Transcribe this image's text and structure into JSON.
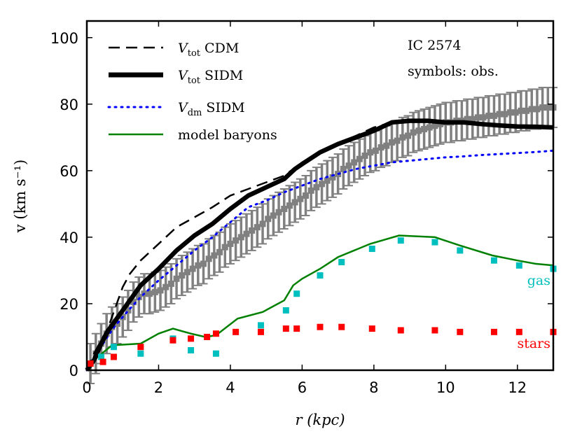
{
  "chart_data": {
    "type": "line",
    "title": "IC 2574",
    "subtitle": "symbols: obs.",
    "xlabel": "r (kpc)",
    "ylabel": "v (km s⁻¹)",
    "xlim": [
      0,
      13
    ],
    "ylim": [
      0,
      105
    ],
    "xticks": [
      0,
      2,
      4,
      6,
      8,
      10,
      12
    ],
    "yticks": [
      0,
      20,
      40,
      60,
      80,
      100
    ],
    "legend_position": "top-left",
    "legend": [
      {
        "key": "vtot_cdm",
        "main": "V",
        "sub": "tot",
        "rest": " CDM",
        "style": "dashed",
        "color": "#000000"
      },
      {
        "key": "vtot_sidm",
        "main": "V",
        "sub": "tot",
        "rest": " SIDM",
        "style": "thick",
        "color": "#000000"
      },
      {
        "key": "vdm_sidm",
        "main": "V",
        "sub": "dm",
        "rest": " SIDM",
        "style": "dotted",
        "color": "#0000ff"
      },
      {
        "key": "baryons",
        "main": "model baryons",
        "sub": "",
        "rest": "",
        "style": "solid",
        "color": "#008000"
      }
    ],
    "annotations": {
      "gas": "gas",
      "stars": "stars"
    },
    "colors": {
      "obs": "#808080",
      "gas": "#00bfbf",
      "stars": "#ff0000",
      "dm": "#0000ff",
      "baryons": "#008000",
      "total": "#000000"
    },
    "lines": {
      "vtot_cdm": {
        "x": [
          0,
          0.2,
          0.4,
          0.6,
          0.8,
          1.0,
          1.2,
          1.5,
          2.0,
          2.5,
          3.0,
          3.5,
          4.0,
          4.5,
          5.0,
          5.5,
          6.0,
          6.5,
          7.0,
          7.5,
          8.0,
          8.5,
          9.0,
          9.5,
          10.0,
          10.5,
          11.0,
          11.5,
          12.0,
          12.5,
          13.0
        ],
        "y": [
          0,
          5,
          9,
          13,
          19,
          25,
          29,
          33,
          38,
          43,
          46,
          49,
          52.5,
          54.5,
          56.5,
          58.5,
          62.5,
          65.5,
          68,
          70.5,
          73,
          74.5,
          75,
          75,
          74.8,
          74.5,
          74,
          73.6,
          73.3,
          73.2,
          73
        ]
      },
      "vtot_sidm": {
        "x": [
          0,
          0.2,
          0.4,
          0.6,
          0.8,
          1.0,
          1.2,
          1.5,
          2.0,
          2.5,
          3.0,
          3.5,
          4.0,
          4.5,
          5.0,
          5.5,
          5.8,
          6.0,
          6.5,
          7.0,
          7.5,
          8.0,
          8.5,
          9.0,
          9.5,
          10.0,
          10.5,
          11.0,
          11.5,
          12.0,
          12.5,
          13.0
        ],
        "y": [
          0,
          3,
          8,
          12,
          15,
          18,
          21,
          25.5,
          30.5,
          36,
          40.5,
          44,
          48.5,
          52.5,
          55,
          57.5,
          60.5,
          62,
          65.5,
          68,
          70,
          72,
          74.5,
          75,
          75,
          74.5,
          74.5,
          74,
          73.6,
          73.3,
          73.2,
          73
        ]
      },
      "vdm_sidm": {
        "x": [
          0,
          0.2,
          0.4,
          0.6,
          0.8,
          1.0,
          1.2,
          1.5,
          2.0,
          2.5,
          3.0,
          3.5,
          4.0,
          4.5,
          5.0,
          5.5,
          6.0,
          6.5,
          7.0,
          7.5,
          8.0,
          8.5,
          9.0,
          9.5,
          10.0,
          10.5,
          11.0,
          11.5,
          12.0,
          12.5,
          13.0
        ],
        "y": [
          0,
          3,
          7,
          10.5,
          13.5,
          16,
          18.5,
          22,
          27,
          31.5,
          36,
          40,
          44.5,
          49,
          51,
          53.5,
          55.5,
          57.5,
          59,
          60.5,
          61.5,
          62.5,
          63,
          63.5,
          64,
          64.3,
          64.7,
          65,
          65.3,
          65.6,
          66
        ]
      },
      "baryons": {
        "x": [
          0,
          0.3,
          0.7,
          1.5,
          2.0,
          2.4,
          2.9,
          3.3,
          3.6,
          4.2,
          4.9,
          5.5,
          5.75,
          6.0,
          6.5,
          7.0,
          7.9,
          8.7,
          9.7,
          10.4,
          11.3,
          12.0,
          12.5,
          13.0
        ],
        "y": [
          0,
          4,
          7.5,
          8,
          11,
          12.5,
          11,
          10,
          10.5,
          15.5,
          17.5,
          21,
          25.5,
          27.5,
          30.5,
          34,
          38,
          40.5,
          40,
          37.5,
          34.5,
          33,
          32,
          31.5
        ]
      }
    },
    "gas": {
      "x": [
        0.1,
        0.4,
        0.75,
        1.5,
        2.4,
        2.9,
        3.6,
        4.85,
        5.55,
        5.85,
        6.5,
        7.1,
        7.95,
        8.75,
        9.7,
        10.4,
        11.35,
        12.05,
        13.0
      ],
      "y": [
        2,
        4,
        7,
        5,
        9.5,
        6,
        5,
        13.5,
        18,
        23,
        28.5,
        32.5,
        36.5,
        39,
        38.5,
        36,
        33,
        31.5,
        30.5
      ]
    },
    "stars": {
      "x": [
        0.1,
        0.45,
        0.75,
        1.5,
        2.4,
        2.9,
        3.35,
        3.6,
        4.15,
        4.85,
        5.55,
        5.85,
        6.5,
        7.1,
        7.95,
        8.75,
        9.7,
        10.4,
        11.35,
        12.05,
        13.0
      ],
      "y": [
        2,
        2.5,
        4,
        7,
        9,
        9.5,
        10,
        11,
        11.5,
        11.5,
        12.5,
        12.5,
        13,
        13,
        12.5,
        12,
        12,
        11.5,
        11.5,
        11.5,
        11.5
      ]
    },
    "observed": {
      "x": [
        0.1,
        0.25,
        0.4,
        0.55,
        0.7,
        0.85,
        1.0,
        1.15,
        1.3,
        1.45,
        1.6,
        1.75,
        1.9,
        2.05,
        2.2,
        2.35,
        2.5,
        2.65,
        2.8,
        2.95,
        3.1,
        3.25,
        3.4,
        3.55,
        3.7,
        3.85,
        4.0,
        4.15,
        4.3,
        4.45,
        4.6,
        4.75,
        4.9,
        5.05,
        5.2,
        5.35,
        5.5,
        5.65,
        5.8,
        5.95,
        6.1,
        6.25,
        6.4,
        6.55,
        6.7,
        6.85,
        7.0,
        7.15,
        7.3,
        7.45,
        7.6,
        7.75,
        7.9,
        8.05,
        8.2,
        8.35,
        8.5,
        8.65,
        8.8,
        8.95,
        9.1,
        9.25,
        9.4,
        9.55,
        9.7,
        9.85,
        10.0,
        10.15,
        10.3,
        10.45,
        10.6,
        10.75,
        10.9,
        11.05,
        11.2,
        11.35,
        11.5,
        11.65,
        11.8,
        11.95,
        12.1,
        12.25,
        12.4,
        12.55,
        12.7,
        12.85,
        13.0
      ],
      "y": [
        2,
        5,
        8,
        11,
        13,
        14,
        16,
        18,
        20.5,
        22,
        23,
        23,
        23.5,
        24,
        25,
        26,
        27.5,
        28.5,
        29.5,
        30.5,
        31.5,
        32,
        33.5,
        34.5,
        35.5,
        37,
        38,
        39,
        40,
        41,
        42,
        43,
        44,
        45.5,
        46.5,
        47.5,
        48.5,
        49.5,
        50.5,
        51.5,
        52.5,
        54,
        55,
        56,
        57,
        58,
        59,
        60.5,
        61.5,
        62.5,
        63.5,
        64.5,
        65.5,
        66,
        67,
        67.5,
        68.5,
        69,
        70,
        70.5,
        71.5,
        72,
        72.5,
        73,
        73.5,
        74,
        74.5,
        74.5,
        75,
        75,
        75.5,
        75.5,
        76,
        76,
        76.5,
        76.5,
        77,
        77,
        77.5,
        77.5,
        78,
        78,
        78.5,
        78.5,
        79,
        79,
        79
      ],
      "err": 6
    }
  }
}
